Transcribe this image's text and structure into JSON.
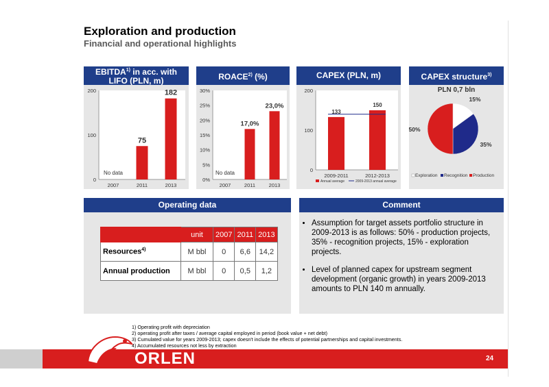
{
  "title": "Exploration and production",
  "subtitle": "Financial and operational highlights",
  "panels": {
    "ebitda": {
      "title": "EBITDA",
      "sup": "1)",
      "title2": " in acc. with",
      "title3": "LIFO (PLN, m)"
    },
    "roace": {
      "title": "ROACE",
      "sup": "2)",
      "title2": " (%)"
    },
    "capex": {
      "title": "CAPEX (PLN, m)"
    },
    "capex_structure": {
      "title": "CAPEX structure",
      "sup": "3)",
      "total": "PLN 0,7 bln"
    }
  },
  "chart_data": [
    {
      "type": "bar",
      "categories": [
        "2007",
        "2011",
        "2013"
      ],
      "values": [
        null,
        75,
        182
      ],
      "data_labels": [
        "",
        "75",
        "182"
      ],
      "annotation": "No data",
      "ylim": [
        0,
        200
      ],
      "yticks": [
        "0",
        "100",
        "200"
      ],
      "colors": {
        "bar": "#d81e1e"
      }
    },
    {
      "type": "bar",
      "categories": [
        "2007",
        "2011",
        "2013"
      ],
      "values": [
        null,
        17.0,
        23.0
      ],
      "data_labels": [
        "",
        "17,0%",
        "23,0%"
      ],
      "annotation": "No data",
      "ylim": [
        0,
        30
      ],
      "yticks": [
        "0%",
        "5%",
        "10%",
        "15%",
        "20%",
        "25%",
        "30%"
      ]
    },
    {
      "type": "bar",
      "categories": [
        "2009-2011",
        "2012-2013"
      ],
      "values": [
        133,
        150
      ],
      "data_labels": [
        "133",
        "150"
      ],
      "ylim": [
        0,
        200
      ],
      "yticks": [
        "0",
        "100",
        "200"
      ],
      "legend": [
        "Annual average",
        "2009-2013 annual average"
      ],
      "average_line": 140
    },
    {
      "type": "pie",
      "categories": [
        "Exploration",
        "Recognition",
        "Production"
      ],
      "values": [
        15,
        35,
        50
      ],
      "data_labels": [
        "15%",
        "35%",
        "50%"
      ],
      "colors": [
        "#ffffff",
        "#1f2a8a",
        "#d81e1e"
      ]
    }
  ],
  "operating": {
    "title": "Operating data",
    "headers": [
      "unit",
      "2007",
      "2011",
      "2013"
    ],
    "rows": [
      {
        "label": "Resources",
        "sup": "4)",
        "unit": "M bbl",
        "v2007": "0",
        "v2011": "6,6",
        "v2013": "14,2"
      },
      {
        "label": "Annual production",
        "unit": "M bbl",
        "v2007": "0",
        "v2011": "0,5",
        "v2013": "1,2"
      }
    ]
  },
  "comment": {
    "title": "Comment",
    "bullets": [
      "Assumption for target assets portfolio structure in 2009-2013 is as follows: 50% - production projects, 35% - recognition projects, 15% - exploration projects.",
      "Level of planned capex for upstream segment development (organic growth) in years 2009-2013 amounts to PLN 140 m annually."
    ]
  },
  "footnotes": [
    "1) Operating profit with depreciation",
    "2) operating profit after taxes / average capital employed in period (book value + net debt)",
    "3) Cumulated value for years 2009-2013; capex doesn't include the effects of potential partnerships and capital investments.",
    "4) Accumulated resources not less by extraction"
  ],
  "brand": "ORLEN",
  "page_number": "24"
}
